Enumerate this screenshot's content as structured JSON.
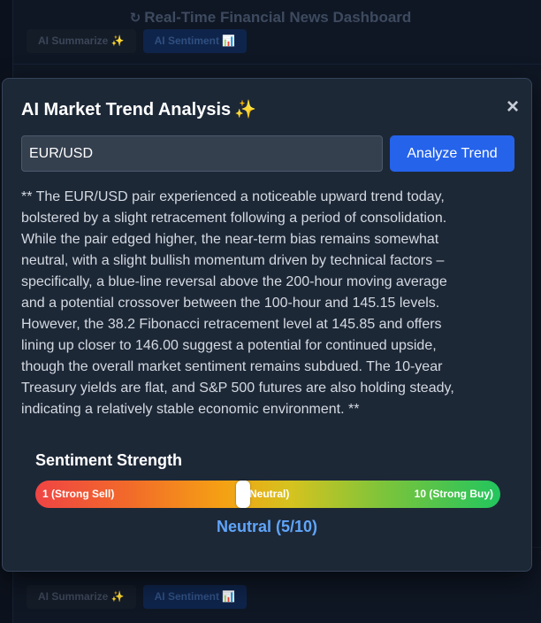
{
  "background": {
    "title": "Real-Time Financial News Dashboard",
    "refresh_icon": "refresh-icon",
    "summarize_label": "AI Summarize ✨",
    "sentiment_label": "AI Sentiment 📊"
  },
  "modal": {
    "title": "AI Market Trend Analysis",
    "title_icon": "sparkles-icon",
    "close_label": "×",
    "input_value": "EUR/USD",
    "analyze_label": "Analyze Trend",
    "analysis_lines": [
      "** The EUR/USD pair experienced a noticeable upward trend today,",
      "bolstered by a slight retracement following a period of consolidation.",
      "While the pair edged higher, the near-term bias remains somewhat",
      "neutral, with a slight bullish momentum driven by technical factors –",
      "specifically, a blue-line reversal above the 200-hour moving average",
      "and a potential crossover between the 100-hour and 145.15 levels.",
      "However, the 38.2 Fibonacci retracement level at 145.85 and offers",
      "lining up closer to 146.00 suggest a potential for continued upside,",
      "though the overall market sentiment remains subdued. The 10-year",
      "Treasury yields are flat, and S&P 500 futures are also holding steady,",
      "indicating a relatively stable economic environment. **"
    ],
    "strength": {
      "title": "Sentiment Strength",
      "min_label": "1 (Strong Sell)",
      "mid_label": "Neutral)",
      "max_label": "10 (Strong Buy)",
      "value": 5,
      "min": 1,
      "max": 10,
      "value_text": "Neutral (5/10)",
      "colors": {
        "low": "#ef4444",
        "mid": "#f5a014",
        "high": "#22c55e",
        "value_text": "#60a5fa"
      }
    }
  },
  "colors": {
    "accent": "#2563eb",
    "modal_bg": "#1d2837",
    "page_bg": "#0c121d"
  }
}
